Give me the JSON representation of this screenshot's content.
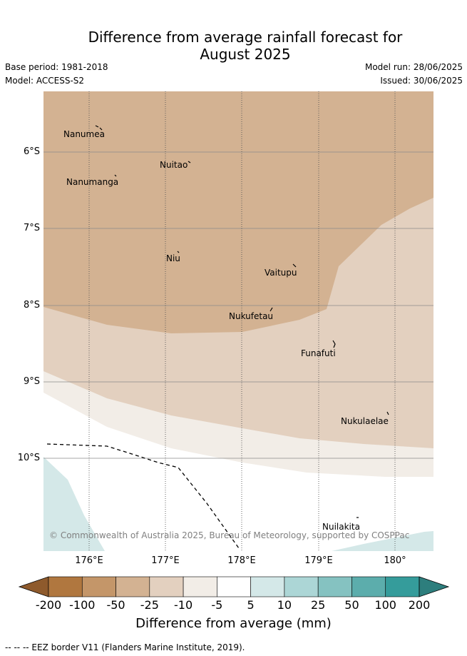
{
  "title": "Difference from average rainfall forecast for August 2025",
  "title_lines": [
    "Difference from average rainfall forecast for",
    "August 2025"
  ],
  "meta": {
    "base_period": "Base period: 1981-2018",
    "model": "Model: ACCESS-S2",
    "model_run": "Model run: 28/06/2025",
    "issued": "Issued: 30/06/2025"
  },
  "map": {
    "latitude_labels": [
      "6°S",
      "7°S",
      "8°S",
      "9°S",
      "10°S"
    ],
    "longitude_labels": [
      "176°E",
      "177°E",
      "178°E",
      "179°E",
      "180°"
    ],
    "places": [
      {
        "name": "Nanumea"
      },
      {
        "name": "Nuitao"
      },
      {
        "name": "Nanumanga"
      },
      {
        "name": "Niu"
      },
      {
        "name": "Vaitupu"
      },
      {
        "name": "Nukufetau"
      },
      {
        "name": "Funafuti"
      },
      {
        "name": "Nukulaelae"
      },
      {
        "name": "Nuilakita"
      }
    ],
    "copyright": "© Commonwealth of Australia 2025, Bureau of Meteorology, supported by COSPPac"
  },
  "colorbar": {
    "tick_labels": [
      "-200",
      "-100",
      "-50",
      "-25",
      "-10",
      "-5",
      "5",
      "10",
      "25",
      "50",
      "100",
      "200"
    ],
    "colors": [
      "#8e5a2c",
      "#b0773f",
      "#c49669",
      "#d3b292",
      "#e3d0bf",
      "#f2ede7",
      "#ffffff",
      "#d4e8e8",
      "#acd6d6",
      "#85c2c1",
      "#5cadac",
      "#359c9b",
      "#2d7e7d"
    ],
    "title": "Difference from average (mm)"
  },
  "footer": {
    "note": "-- -- -- EEZ border V11 (Flanders Marine Institute, 2019)."
  }
}
